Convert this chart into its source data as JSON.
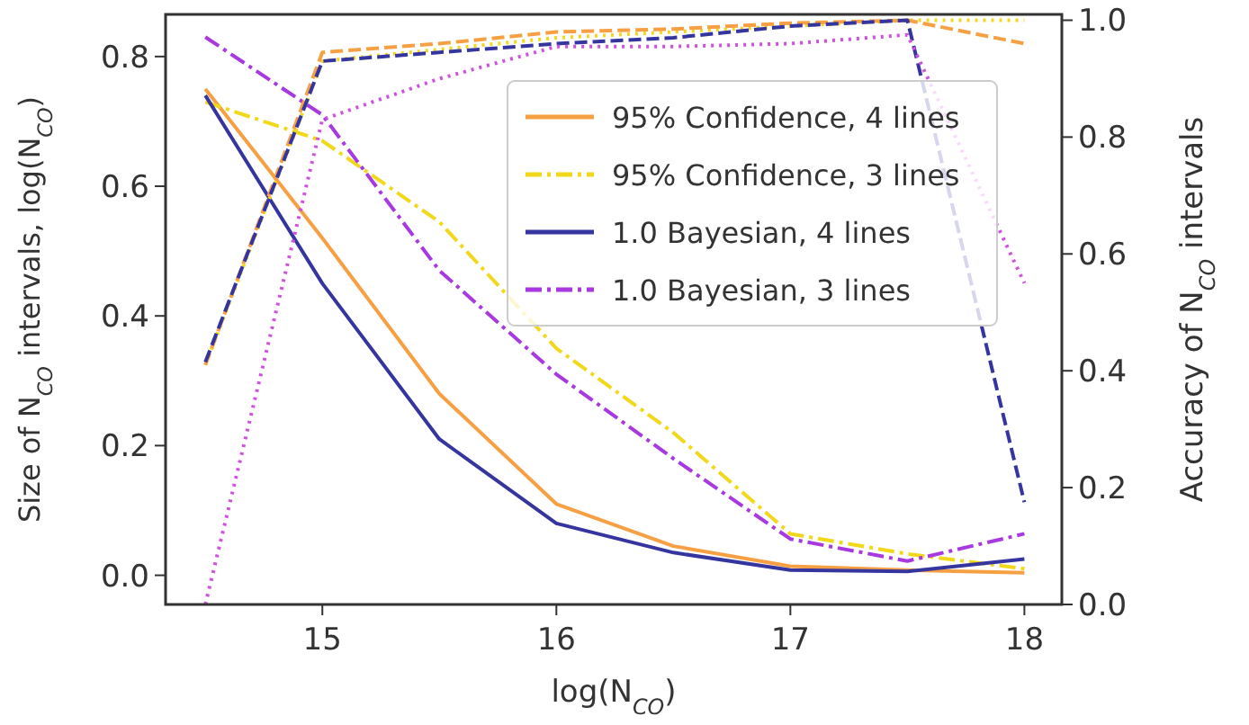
{
  "chart_data": {
    "type": "line",
    "xlabel": "log(N$_{CO}$)",
    "ylabel": "Size of N$_{CO}$ intervals, log(N$_{CO}$)",
    "y2label": "Accuracy of N$_{CO}$ intervals",
    "x": [
      14.5,
      15,
      15.5,
      16,
      16.5,
      17,
      17.5,
      18
    ],
    "xlim": [
      14.33,
      18.16
    ],
    "xticks": [
      15,
      16,
      17,
      18
    ],
    "ylim": [
      -0.045,
      0.865
    ],
    "yticks": [
      {
        "value": 0,
        "label": "0.0"
      },
      {
        "value": 0.2,
        "label": "0.2"
      },
      {
        "value": 0.4,
        "label": "0.4"
      },
      {
        "value": 0.6,
        "label": "0.6"
      },
      {
        "value": 0.8,
        "label": "0.8"
      }
    ],
    "y2lim": [
      0,
      1.01
    ],
    "y2ticks": [
      {
        "value": 0,
        "label": "0.0"
      },
      {
        "value": 0.2,
        "label": "0.2"
      },
      {
        "value": 0.4,
        "label": "0.4"
      },
      {
        "value": 0.6,
        "label": "0.6"
      },
      {
        "value": 0.8,
        "label": "0.8"
      },
      {
        "value": 1,
        "label": "1.0"
      }
    ],
    "series": [
      {
        "name": "95% Confidence, 4 lines",
        "color": "#f7a043",
        "line_style": "solid",
        "values": [
          0.75,
          0.52,
          0.28,
          0.11,
          0.045,
          0.014,
          0.008,
          0.004
        ]
      },
      {
        "name": "95% Confidence, 3 lines",
        "color": "#f2d81a",
        "line_style": "dashdot",
        "values": [
          0.73,
          0.67,
          0.545,
          0.35,
          0.22,
          0.064,
          0.033,
          0.01
        ]
      },
      {
        "name": "1.0 Bayesian, 4 lines",
        "color": "#3535a0",
        "line_style": "solid",
        "values": [
          0.74,
          0.45,
          0.21,
          0.08,
          0.035,
          0.008,
          0.006,
          0.025
        ]
      },
      {
        "name": "1.0 Bayesian, 3 lines",
        "color": "#a838e0",
        "line_style": "dashdot",
        "values": [
          0.83,
          0.71,
          0.47,
          0.31,
          0.18,
          0.056,
          0.022,
          0.064
        ]
      },
      {
        "color": "#f2d81a",
        "line_style": "dotted",
        "axis": "y2",
        "values": [
          0.41,
          0.93,
          0.95,
          0.97,
          0.98,
          0.99,
          1.0,
          1.0
        ]
      },
      {
        "color": "#f7a043",
        "line_style": "dashed",
        "axis": "y2",
        "values": [
          0.41,
          0.945,
          0.96,
          0.98,
          0.985,
          0.995,
          1.0,
          0.96
        ]
      },
      {
        "color": "#3535a0",
        "line_style": "dashed",
        "axis": "y2",
        "values": [
          0.415,
          0.93,
          0.945,
          0.96,
          0.97,
          0.99,
          1.0,
          0.175
        ]
      },
      {
        "color": "#d050e0",
        "line_style": "dotted",
        "axis": "y2",
        "values": [
          0.0,
          0.83,
          0.9,
          0.955,
          0.955,
          0.96,
          0.975,
          0.55
        ]
      }
    ],
    "legend": "top right",
    "grid": false,
    "marker": "none"
  }
}
